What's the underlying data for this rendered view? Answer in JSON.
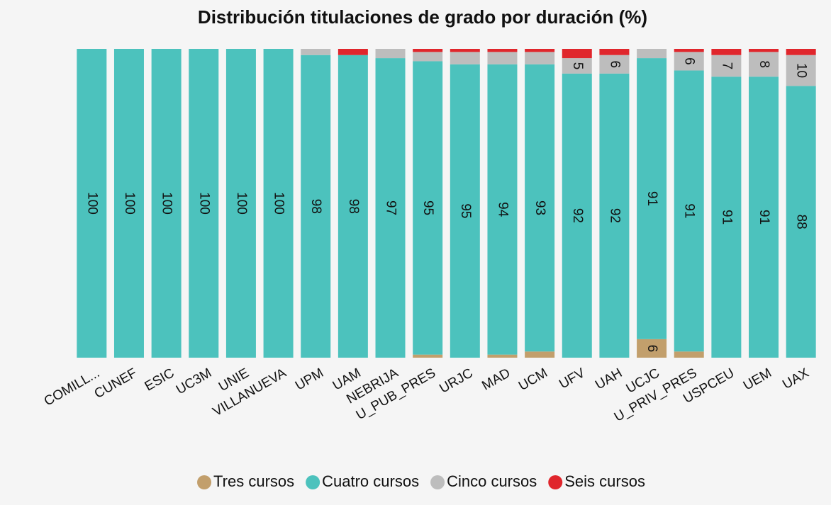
{
  "chart_data": {
    "type": "stacked_bar",
    "title": "Distribución titulaciones de grado por duración (%)",
    "categories": [
      "COMILL...",
      "CUNEF",
      "ESIC",
      "UC3M",
      "UNIE",
      "VILLANUEVA",
      "UPM",
      "UAM",
      "NEBRIJA",
      "U_PUB_PRES",
      "URJC",
      "MAD",
      "UCM",
      "UFV",
      "UAH",
      "UCJC",
      "U_PRIV_PRES",
      "USPCEU",
      "UEM",
      "UAX"
    ],
    "series": [
      {
        "name": "Tres cursos",
        "color": "#c29f6c",
        "values": [
          0,
          0,
          0,
          0,
          0,
          0,
          0,
          0,
          0,
          1,
          0,
          1,
          2,
          0,
          0,
          6,
          2,
          0,
          0,
          0
        ]
      },
      {
        "name": "Cuatro cursos",
        "color": "#4cc2bd",
        "values": [
          100,
          100,
          100,
          100,
          100,
          100,
          98,
          98,
          97,
          95,
          95,
          94,
          93,
          92,
          92,
          91,
          91,
          91,
          91,
          88
        ]
      },
      {
        "name": "Cinco cursos",
        "color": "#bdbdbd",
        "values": [
          0,
          0,
          0,
          0,
          0,
          0,
          2,
          0,
          3,
          3,
          4,
          4,
          4,
          5,
          6,
          3,
          6,
          7,
          8,
          10
        ]
      },
      {
        "name": "Seis cursos",
        "color": "#e0262c",
        "values": [
          0,
          0,
          0,
          0,
          0,
          0,
          0,
          2,
          0,
          1,
          1,
          1,
          1,
          3,
          2,
          0,
          1,
          2,
          1,
          2
        ]
      }
    ],
    "ylim": [
      0,
      100
    ],
    "legend": "bottom"
  }
}
